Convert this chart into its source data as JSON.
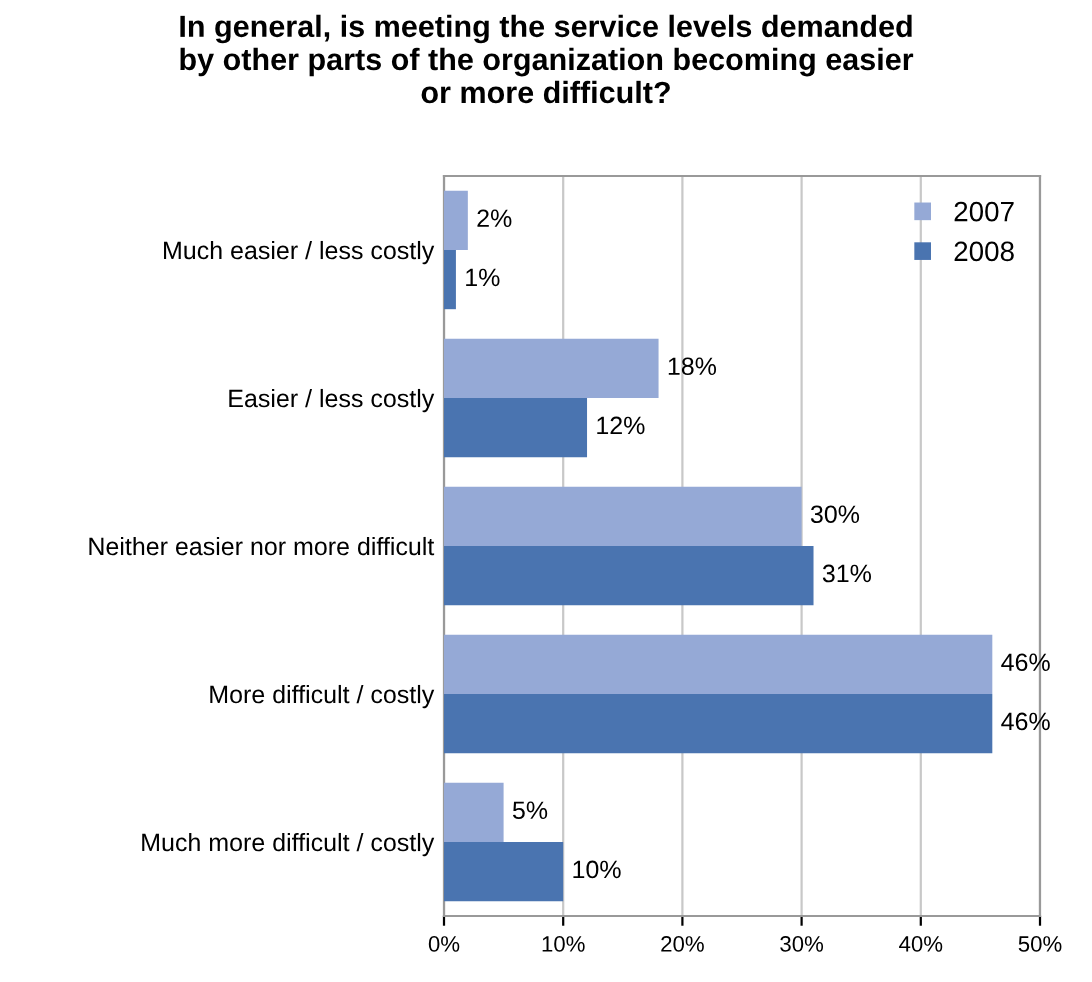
{
  "chart_data": {
    "type": "bar",
    "orientation": "horizontal",
    "title": "In general, is meeting the service levels demanded\nby other parts of the organization becoming easier\nor more difficult?",
    "categories": [
      "Much easier / less costly",
      "Easier / less costly",
      "Neither easier nor more difficult",
      "More difficult / costly",
      "Much more difficult / costly"
    ],
    "series": [
      {
        "name": "2007",
        "color": "#95a9d6",
        "values": [
          2,
          18,
          30,
          46,
          5
        ],
        "value_labels": [
          "2%",
          "18%",
          "30%",
          "46%",
          "5%"
        ]
      },
      {
        "name": "2008",
        "color": "#4a74b0",
        "values": [
          1,
          12,
          31,
          46,
          10
        ],
        "value_labels": [
          "1%",
          "12%",
          "31%",
          "46%",
          "10%"
        ]
      }
    ],
    "xlim": [
      0,
      50
    ],
    "xticks": [
      {
        "value": 0,
        "label": "0%"
      },
      {
        "value": 10,
        "label": "10%"
      },
      {
        "value": 20,
        "label": "20%"
      },
      {
        "value": 30,
        "label": "30%"
      },
      {
        "value": 40,
        "label": "40%"
      },
      {
        "value": 50,
        "label": "50%"
      }
    ],
    "grid": "x",
    "legend": "top right"
  }
}
